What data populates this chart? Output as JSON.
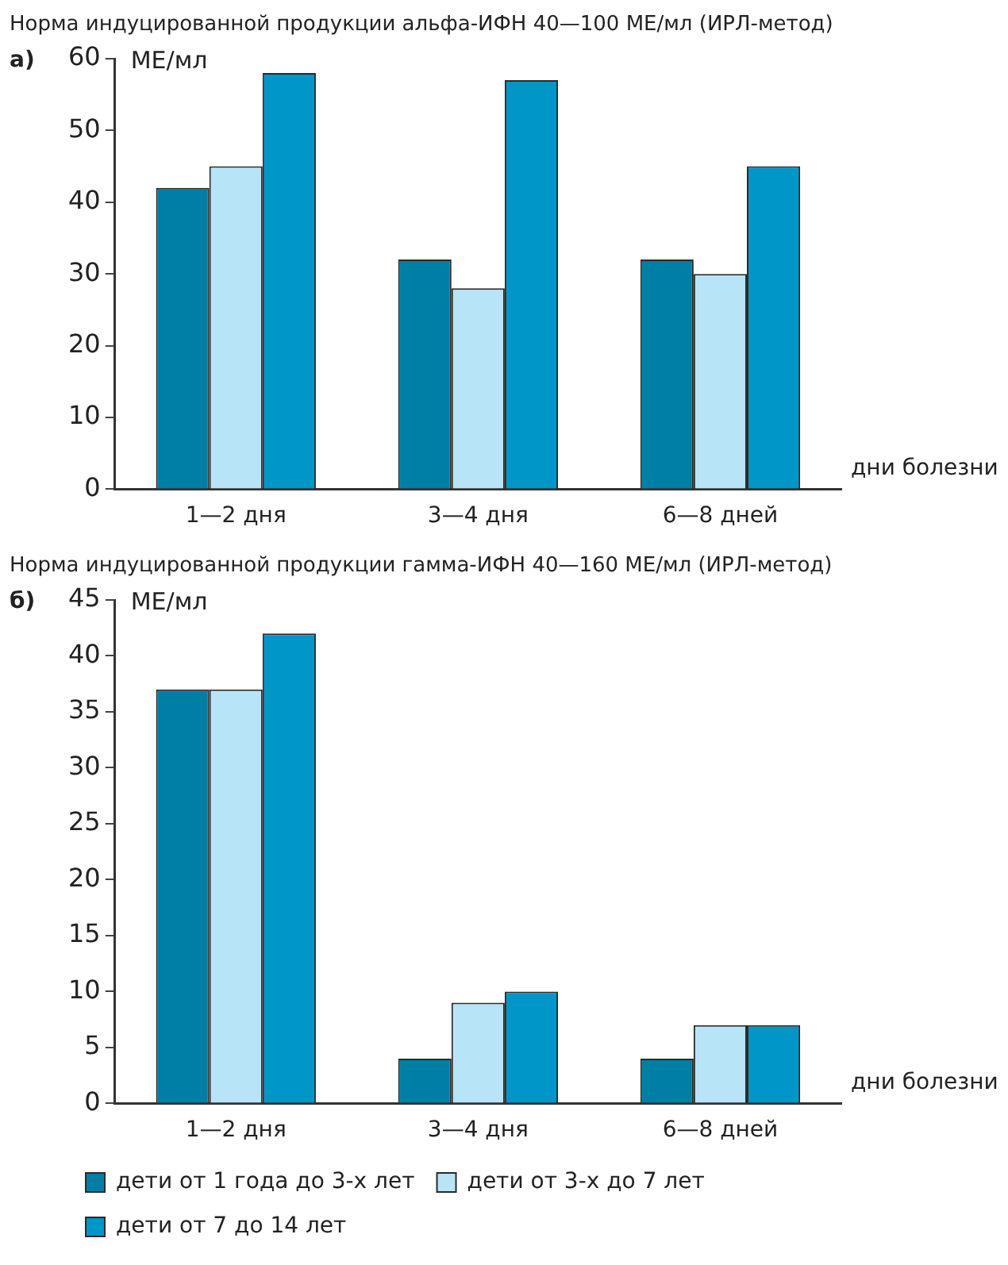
{
  "chart_data": [
    {
      "type": "bar",
      "title": "Норма индуцированной продукции альфа-ИФН 40—100 МЕ/мл (ИРЛ-метод)",
      "annotations": [
        "а)"
      ],
      "ylabel": "МЕ/мл",
      "xlabel": "дни болезни",
      "categories": [
        "1—2 дня",
        "3—4 дня",
        "6—8 дней"
      ],
      "ylim": [
        0,
        60
      ],
      "yticks": [
        0,
        10,
        20,
        30,
        40,
        50,
        60
      ],
      "grid": false,
      "legend": false,
      "series": [
        {
          "color": "#007fa6",
          "values": [
            42,
            32,
            32
          ]
        },
        {
          "color": "#b8e4f8",
          "values": [
            45,
            28,
            30
          ]
        },
        {
          "color": "#0096c8",
          "values": [
            58,
            57,
            45
          ]
        }
      ]
    },
    {
      "type": "bar",
      "title": "Норма индуцированной продукции гамма-ИФН 40—160 МЕ/мл (ИРЛ-метод)",
      "annotations": [
        "б)"
      ],
      "ylabel": "МЕ/мл",
      "xlabel": "дни болезни",
      "categories": [
        "1—2 дня",
        "3—4 дня",
        "6—8 дней"
      ],
      "ylim": [
        0,
        45
      ],
      "yticks": [
        0,
        5,
        10,
        15,
        20,
        25,
        30,
        35,
        40,
        45
      ],
      "grid": false,
      "legend": "bottom",
      "series": [
        {
          "name": "дети от 1 года до 3-х лет",
          "color": "#007fa6",
          "values": [
            37,
            4,
            4
          ]
        },
        {
          "name": "дети от 3-х до 7 лет",
          "color": "#b8e4f8",
          "values": [
            37,
            9,
            7
          ]
        },
        {
          "name": "дети от 7 до 14 лет",
          "color": "#0096c8",
          "values": [
            42,
            10,
            7
          ]
        }
      ]
    }
  ]
}
